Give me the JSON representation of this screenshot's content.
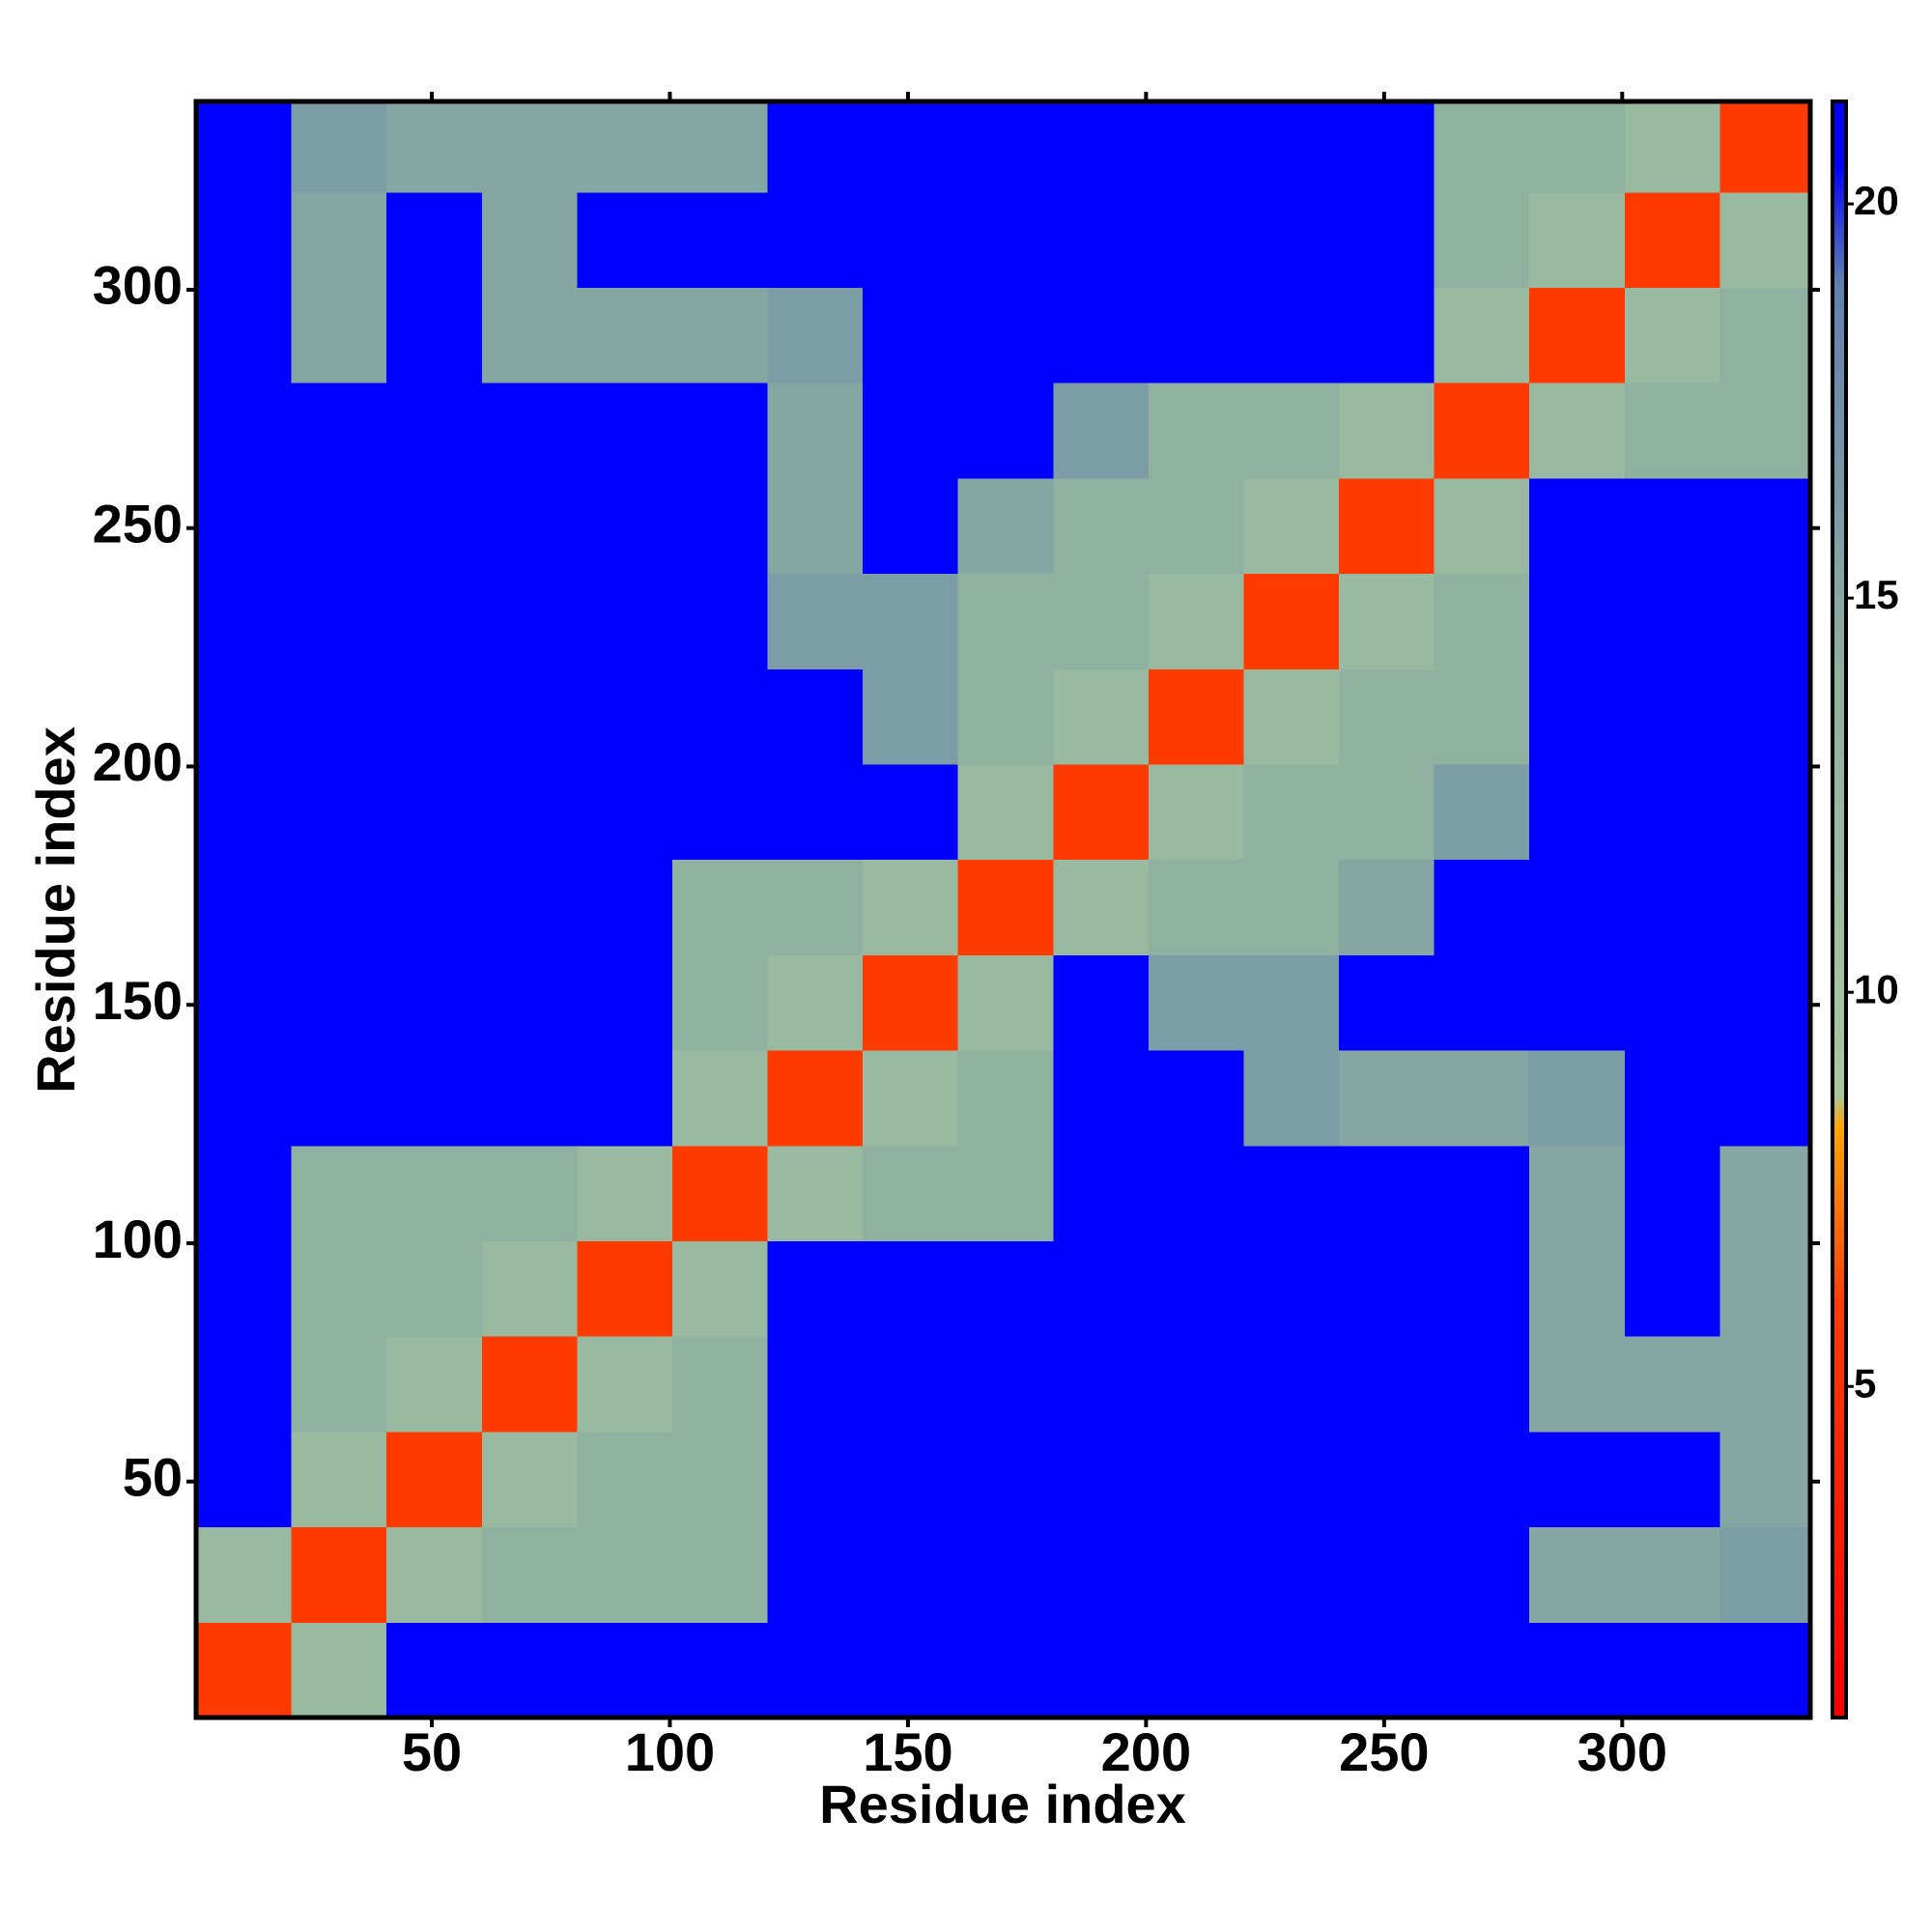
{
  "chart_data": {
    "type": "heatmap",
    "xlabel": "Residue index",
    "ylabel": "Residue index",
    "xlim": [
      0.5,
      339.5
    ],
    "ylim": [
      0.5,
      339.5
    ],
    "xticks": [
      50,
      100,
      150,
      200,
      250,
      300
    ],
    "yticks": [
      50,
      100,
      150,
      200,
      250,
      300
    ],
    "bins": [
      0.5,
      20.5,
      40.5,
      60.5,
      80.5,
      100.5,
      120.5,
      140.5,
      160.5,
      180.5,
      200.5,
      220.5,
      240.5,
      260.5,
      280.5,
      300.5,
      320.5,
      339.5
    ],
    "values": [
      [
        6,
        12,
        21,
        21,
        21,
        21,
        21,
        21,
        21,
        21,
        21,
        21,
        21,
        21,
        21,
        21,
        21
      ],
      [
        12,
        6,
        12,
        14,
        14,
        14,
        21,
        21,
        21,
        21,
        21,
        21,
        21,
        21,
        15,
        15,
        16
      ],
      [
        21,
        12,
        6,
        12,
        14,
        14,
        21,
        21,
        21,
        21,
        21,
        21,
        21,
        21,
        21,
        21,
        15
      ],
      [
        21,
        14,
        12,
        6,
        12,
        14,
        21,
        21,
        21,
        21,
        21,
        21,
        21,
        21,
        15,
        15,
        15
      ],
      [
        21,
        14,
        14,
        12,
        6,
        12,
        21,
        21,
        21,
        21,
        21,
        21,
        21,
        21,
        15,
        21,
        15
      ],
      [
        21,
        14,
        14,
        14,
        12,
        6,
        12,
        14,
        14,
        21,
        21,
        21,
        21,
        21,
        15,
        21,
        15
      ],
      [
        21,
        21,
        21,
        21,
        21,
        12,
        6,
        12,
        14,
        21,
        21,
        16,
        15,
        15,
        16,
        21,
        21
      ],
      [
        21,
        21,
        21,
        21,
        21,
        14,
        12,
        6,
        12,
        21,
        16,
        16,
        21,
        21,
        21,
        21,
        21
      ],
      [
        21,
        21,
        21,
        21,
        21,
        14,
        14,
        12,
        6,
        12,
        14,
        14,
        15,
        21,
        21,
        21,
        21
      ],
      [
        21,
        21,
        21,
        21,
        21,
        21,
        21,
        21,
        12,
        6,
        12,
        14,
        14,
        16,
        21,
        21,
        21
      ],
      [
        21,
        21,
        21,
        21,
        21,
        21,
        21,
        16,
        14,
        12,
        6,
        12,
        14,
        14,
        21,
        21,
        21
      ],
      [
        21,
        21,
        21,
        21,
        21,
        21,
        16,
        16,
        14,
        14,
        12,
        6,
        12,
        14,
        21,
        21,
        21
      ],
      [
        21,
        21,
        21,
        21,
        21,
        21,
        15,
        21,
        15,
        14,
        14,
        12,
        6,
        12,
        21,
        21,
        21
      ],
      [
        21,
        21,
        21,
        21,
        21,
        21,
        15,
        21,
        21,
        16,
        14,
        14,
        12,
        6,
        12,
        14,
        14
      ],
      [
        21,
        15,
        21,
        15,
        15,
        15,
        16,
        21,
        21,
        21,
        21,
        21,
        21,
        12,
        6,
        12,
        14
      ],
      [
        21,
        15,
        21,
        15,
        21,
        21,
        21,
        21,
        21,
        21,
        21,
        21,
        21,
        14,
        12,
        6,
        12
      ],
      [
        21,
        16,
        15,
        15,
        15,
        15,
        21,
        21,
        21,
        21,
        21,
        21,
        21,
        14,
        14,
        12,
        6
      ]
    ],
    "clim": [
      0.8,
      21.3
    ],
    "colorbar_ticks": [
      5,
      10,
      15,
      20
    ],
    "colormap": [
      [
        0.8,
        "#ff0000"
      ],
      [
        6,
        "#ff3a00"
      ],
      [
        8.3,
        "#ffa500"
      ],
      [
        8.7,
        "#a8c8a0"
      ],
      [
        14,
        "#90b0a0"
      ],
      [
        19,
        "#6080b0"
      ],
      [
        20.5,
        "#0000ff"
      ],
      [
        21.3,
        "#0000ff"
      ]
    ]
  }
}
